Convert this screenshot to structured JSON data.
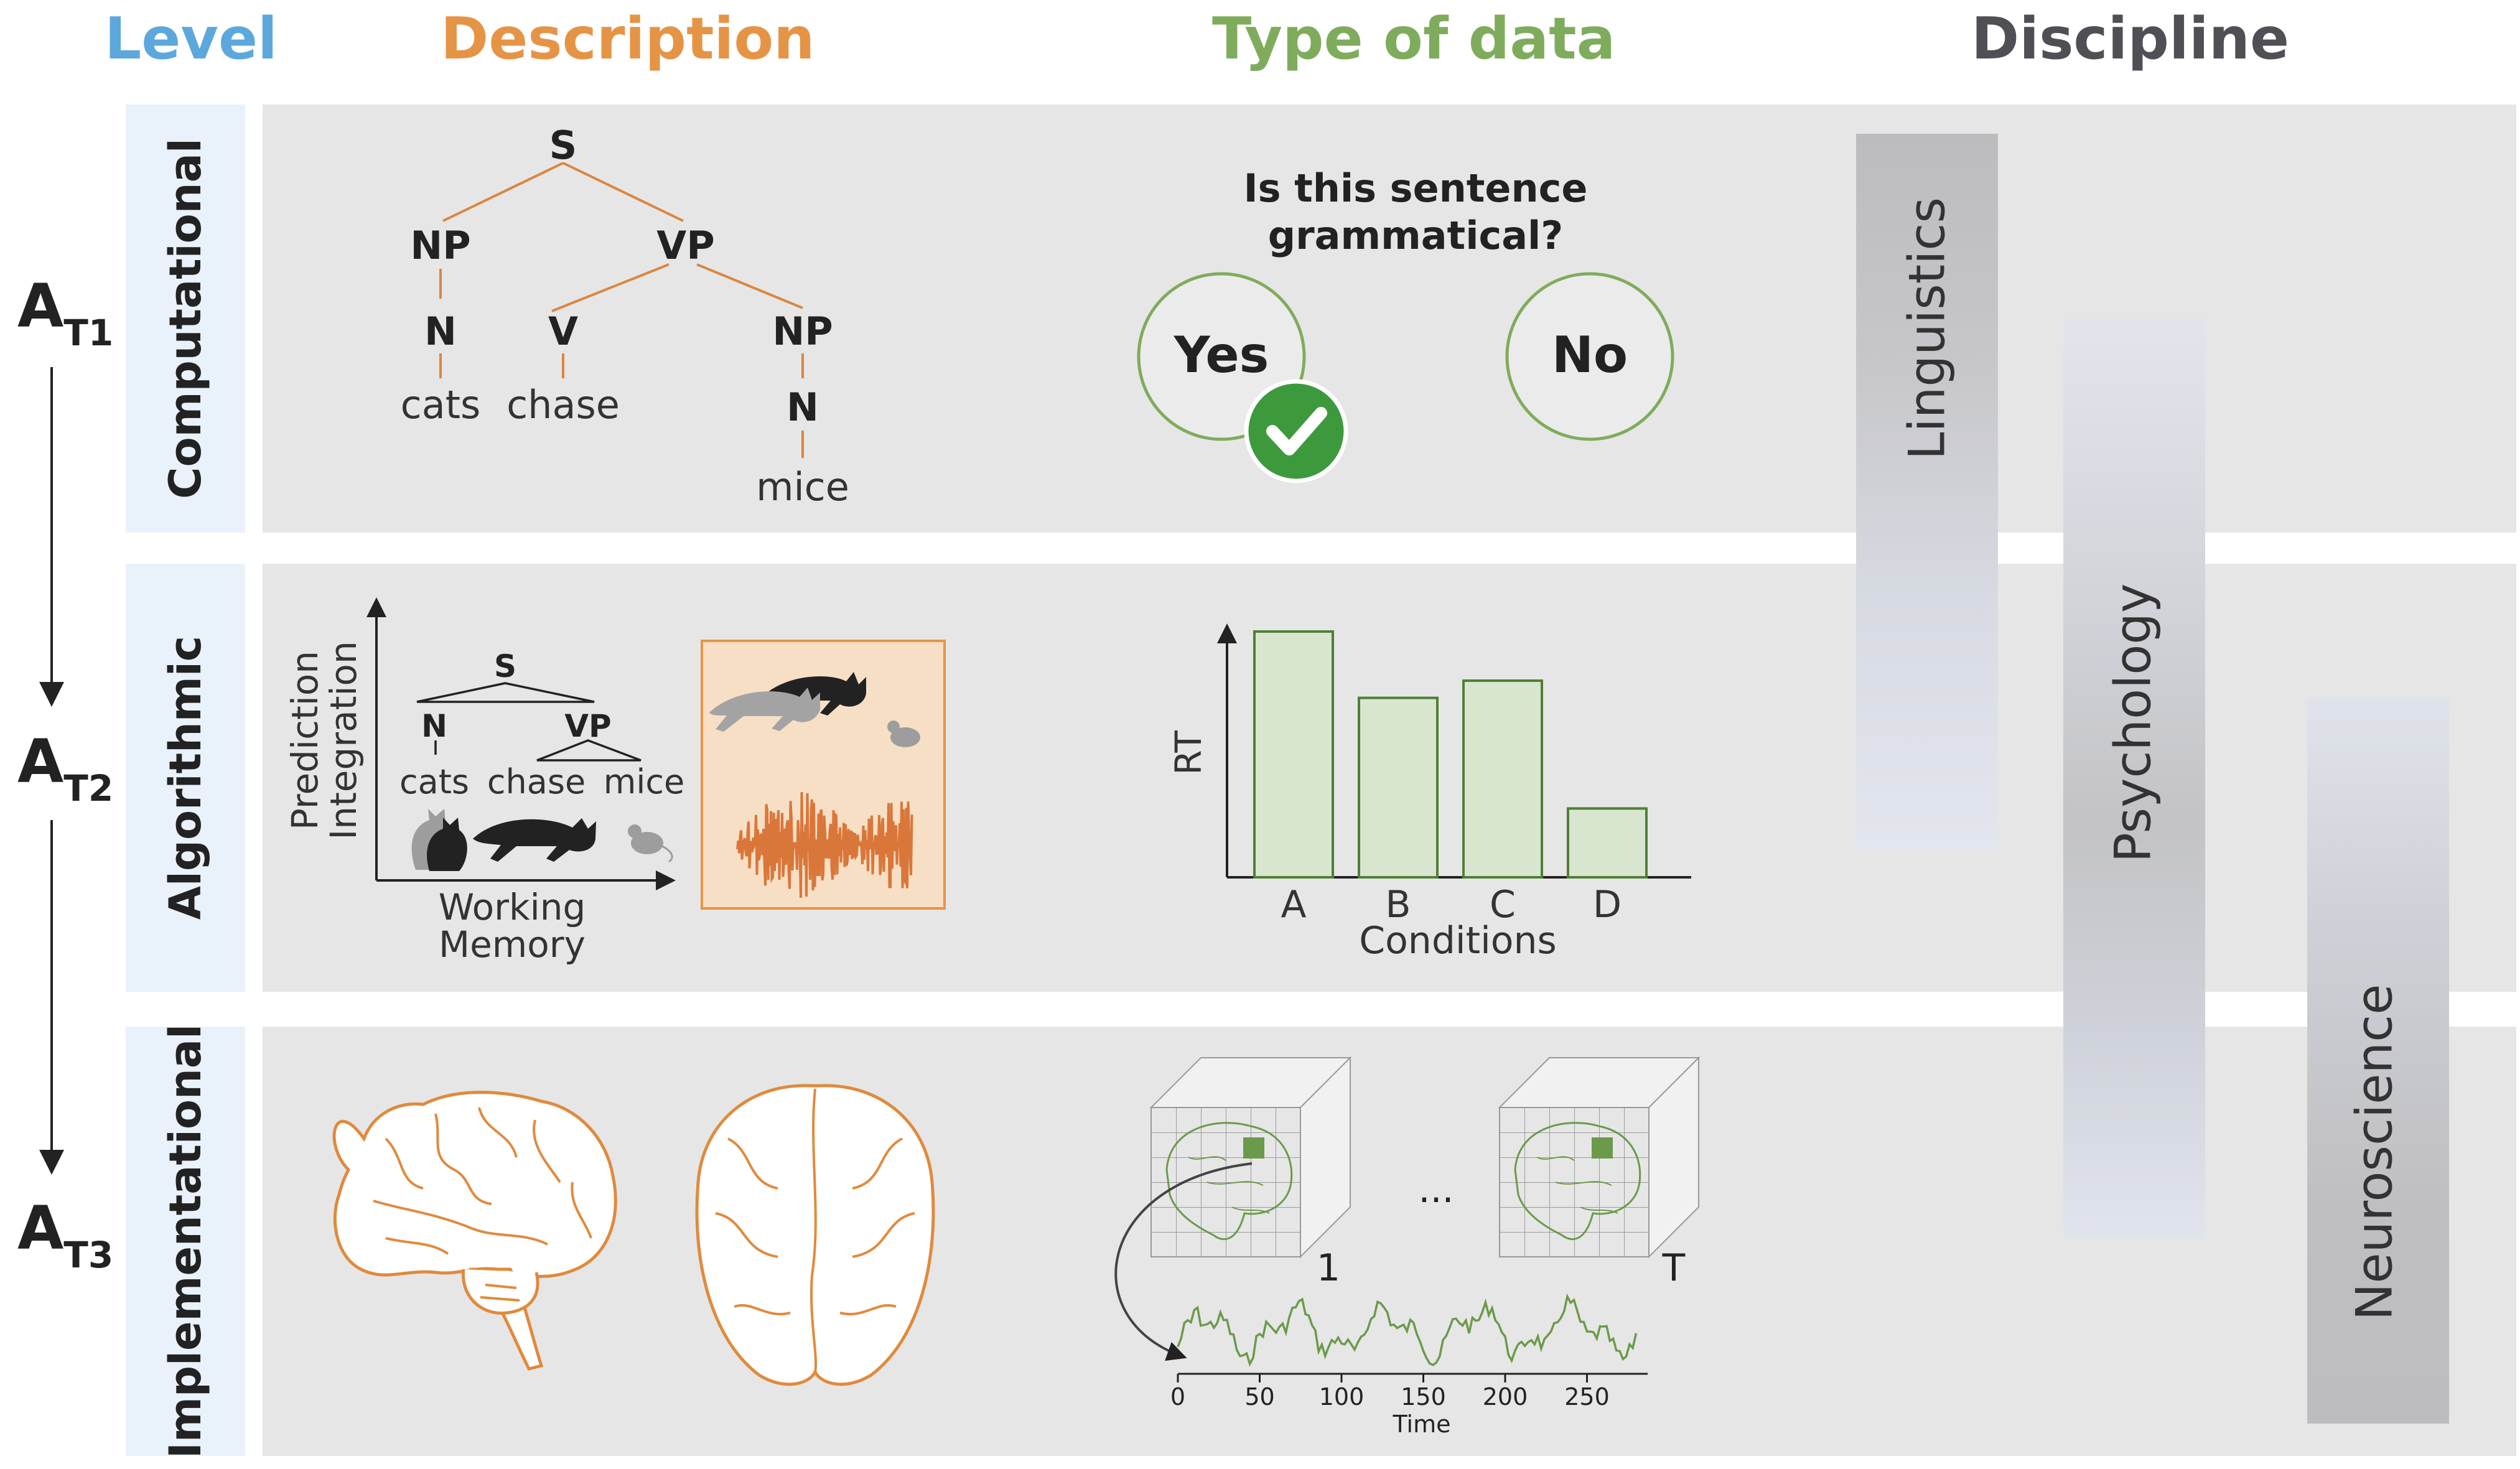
{
  "headers": {
    "level": "Level",
    "description": "Description",
    "type_of_data": "Type of data",
    "discipline": "Discipline"
  },
  "colors": {
    "level": "#5ca8dc",
    "description": "#e59446",
    "type_of_data": "#7fac5c",
    "discipline": "#4f4f55",
    "tree_orange": "#d9873f",
    "green": "#6b9a4b",
    "band": "#e6e6e6",
    "level_box": "#e9f1fb"
  },
  "levels": {
    "computational": "Computational",
    "algorithmic": "Algorithmic",
    "implementational": "Implementational"
  },
  "timeline": {
    "a1": {
      "main": "A",
      "sub": "T1"
    },
    "a2": {
      "main": "A",
      "sub": "T2"
    },
    "a3": {
      "main": "A",
      "sub": "T3"
    }
  },
  "tree": {
    "s": "S",
    "np": "NP",
    "vp": "VP",
    "n1": "N",
    "v": "V",
    "np2": "NP",
    "n2": "N",
    "cats": "cats",
    "chase": "chase",
    "mice": "mice"
  },
  "grammar": {
    "question_line1": "Is this sentence",
    "question_line2": "grammatical?",
    "yes": "Yes",
    "no": "No",
    "selected": "Yes",
    "check_icon": "check-circle-icon"
  },
  "algorithmic_diagram": {
    "y_label_1": "Prediction",
    "y_label_2": "Integration",
    "x_label_1": "Working",
    "x_label_2": "Memory",
    "s": "S",
    "n": "N",
    "vp": "VP",
    "cats": "cats",
    "chase": "chase",
    "mice": "mice",
    "icons": [
      "cat-icon",
      "mouse-icon",
      "waveform-icon"
    ]
  },
  "chart_data": {
    "type": "bar",
    "categories": [
      "A",
      "B",
      "C",
      "D"
    ],
    "values": [
      100,
      73,
      80,
      28
    ],
    "ylim": [
      0,
      100
    ],
    "xlabel": "Conditions",
    "ylabel": "RT",
    "y_ticks_labeled": false
  },
  "fmri": {
    "first_volume": "1",
    "ellipsis": "...",
    "last_volume": "T",
    "time_label": "Time",
    "time_ticks": [
      "0",
      "50",
      "100",
      "150",
      "200",
      "250"
    ],
    "icons": [
      "brain-volume-icon",
      "arrow-icon"
    ]
  },
  "disciplines": {
    "linguistics": "Linguistics",
    "psychology": "Psychology",
    "neuroscience": "Neuroscience"
  }
}
